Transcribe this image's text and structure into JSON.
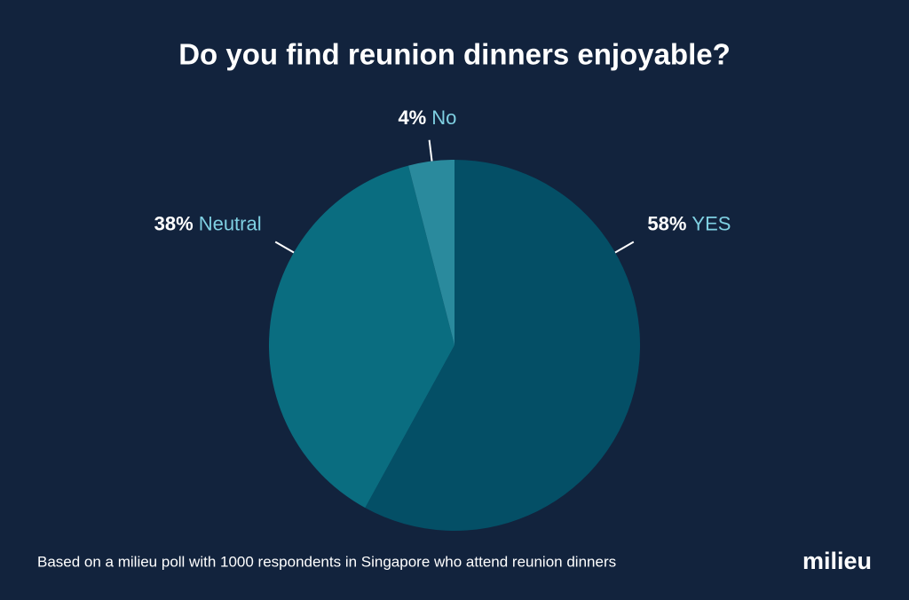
{
  "chart_data": {
    "type": "pie",
    "title": "Do you find reunion dinners enjoyable?",
    "categories": [
      "YES",
      "Neutral",
      "No"
    ],
    "values": [
      58,
      38,
      4
    ],
    "value_labels": [
      "58%",
      "38%",
      "4%"
    ],
    "colors": [
      "#044f66",
      "#0a6d80",
      "#2a8a9d"
    ],
    "source": "Based on a milieu poll with 1000 respondents in Singapore who attend reunion dinners"
  },
  "logo": "milieu"
}
